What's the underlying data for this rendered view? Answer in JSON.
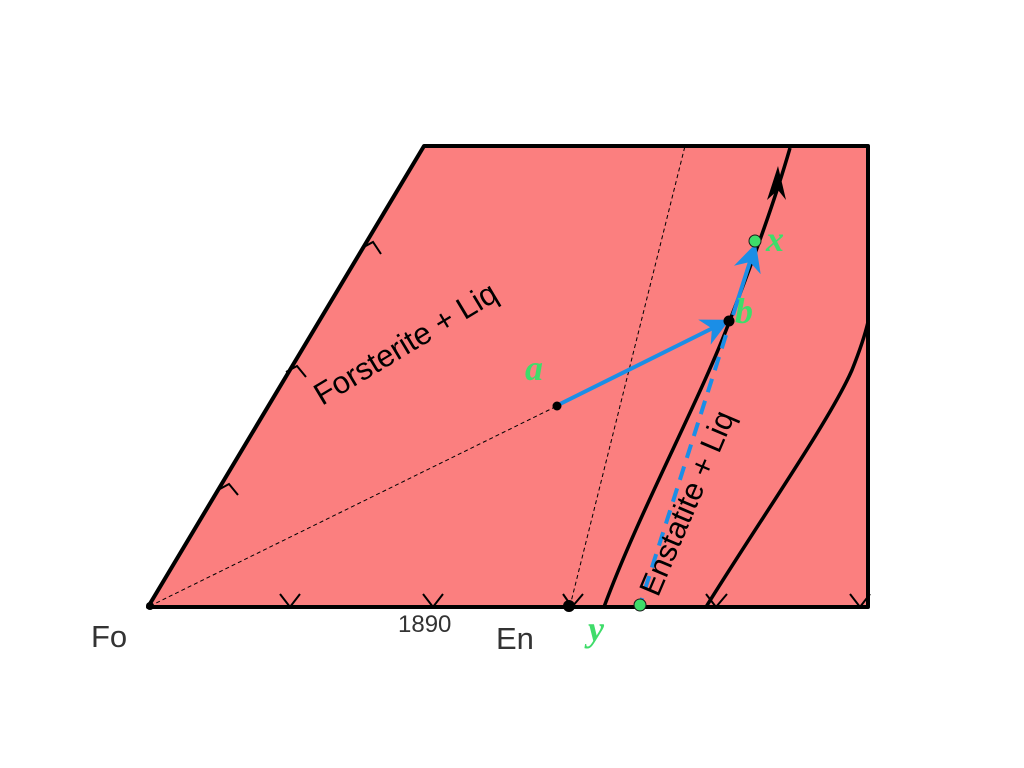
{
  "colors": {
    "field_fill": "#fb7f7f",
    "outline": "#000000",
    "path_blue": "#1b8ee6",
    "point_green": "#3fdc6a",
    "label_dark": "#333333"
  },
  "labels": {
    "fo": "Fo",
    "en": "En",
    "temp_1890": "1890",
    "forsterite_field": "Forsterite + Liq",
    "enstatite_field": "Enstatite + Liq",
    "point_a": "a",
    "point_b": "b",
    "point_x": "x",
    "point_y": "y"
  }
}
